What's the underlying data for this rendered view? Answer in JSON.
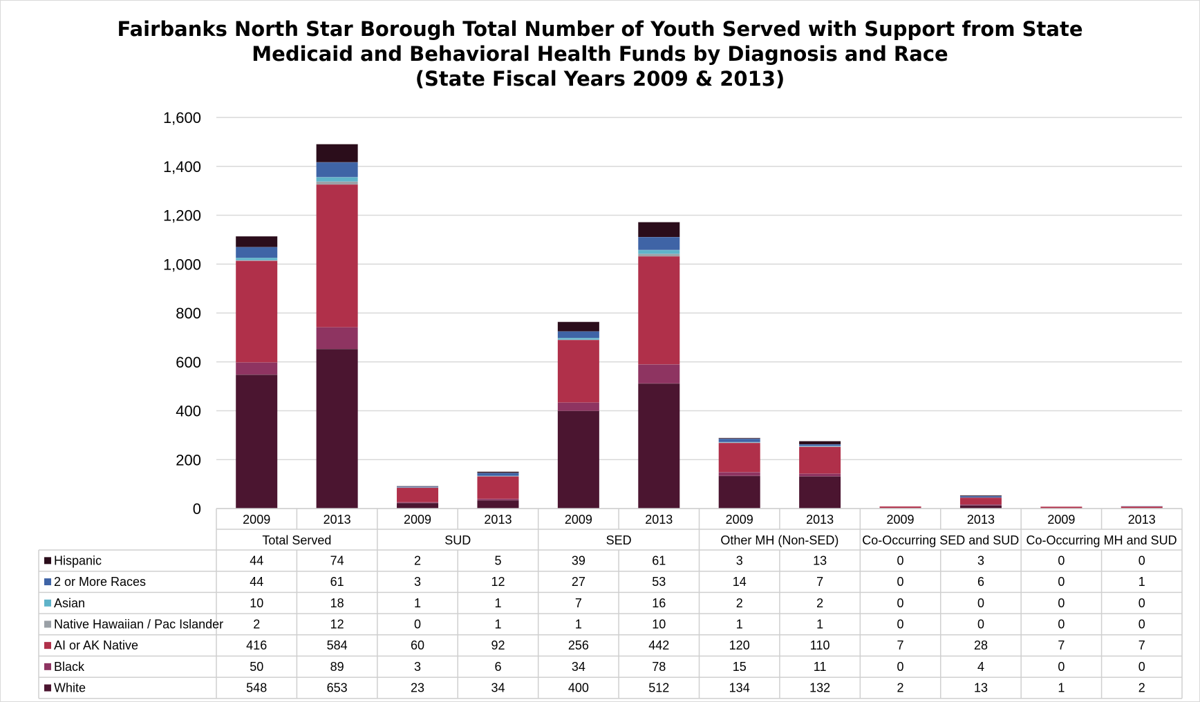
{
  "title": {
    "line1": "Fairbanks North Star Borough Total Number of Youth Served with Support from State",
    "line2": "Medicaid and Behavioral Health Funds by Diagnosis and Race",
    "line3": "(State Fiscal Years 2009 & 2013)"
  },
  "colors": {
    "White": "#4b1530",
    "Black": "#8e3461",
    "AI or AK Native": "#b0304a",
    "Native Hawaiian / Pac Islander": "#9aa0a6",
    "Asian": "#5fb3c9",
    "2 or More Races": "#3f64a6",
    "Hispanic": "#2b0d1b",
    "gridline": "#d9d9d9",
    "table_border": "#cfcfcf"
  },
  "chart_data": {
    "type": "bar",
    "stacked": true,
    "ylim": [
      0,
      1600
    ],
    "yticks": [
      0,
      200,
      400,
      600,
      800,
      1000,
      1200,
      1400,
      1600
    ],
    "ytick_labels": [
      "0",
      "200",
      "400",
      "600",
      "800",
      "1,000",
      "1,200",
      "1,400",
      "1,600"
    ],
    "grid": true,
    "legend_placement": "data table, left",
    "groups": [
      "Total Served",
      "SUD",
      "SED",
      "Other MH (Non-SED)",
      "Co-Occurring SED and SUD",
      "Co-Occurring MH and SUD"
    ],
    "years": [
      "2009",
      "2013"
    ],
    "categories": [
      "2009",
      "2013",
      "2009",
      "2013",
      "2009",
      "2013",
      "2009",
      "2013",
      "2009",
      "2013",
      "2009",
      "2013"
    ],
    "series": [
      {
        "name": "White",
        "values": [
          548,
          653,
          23,
          34,
          400,
          512,
          134,
          132,
          2,
          13,
          1,
          2
        ]
      },
      {
        "name": "Black",
        "values": [
          50,
          89,
          3,
          6,
          34,
          78,
          15,
          11,
          0,
          4,
          0,
          0
        ]
      },
      {
        "name": "AI or AK Native",
        "values": [
          416,
          584,
          60,
          92,
          256,
          442,
          120,
          110,
          7,
          28,
          7,
          7
        ]
      },
      {
        "name": "Native Hawaiian / Pac Islander",
        "values": [
          2,
          12,
          0,
          1,
          1,
          10,
          1,
          1,
          0,
          0,
          0,
          0
        ]
      },
      {
        "name": "Asian",
        "values": [
          10,
          18,
          1,
          1,
          7,
          16,
          2,
          2,
          0,
          0,
          0,
          0
        ]
      },
      {
        "name": "2 or More Races",
        "values": [
          44,
          61,
          3,
          12,
          27,
          53,
          14,
          7,
          0,
          6,
          0,
          1
        ]
      },
      {
        "name": "Hispanic",
        "values": [
          44,
          74,
          2,
          5,
          39,
          61,
          3,
          13,
          0,
          3,
          0,
          0
        ]
      }
    ],
    "table_row_order": [
      "Hispanic",
      "2 or More Races",
      "Asian",
      "Native Hawaiian / Pac Islander",
      "AI or AK Native",
      "Black",
      "White"
    ]
  }
}
